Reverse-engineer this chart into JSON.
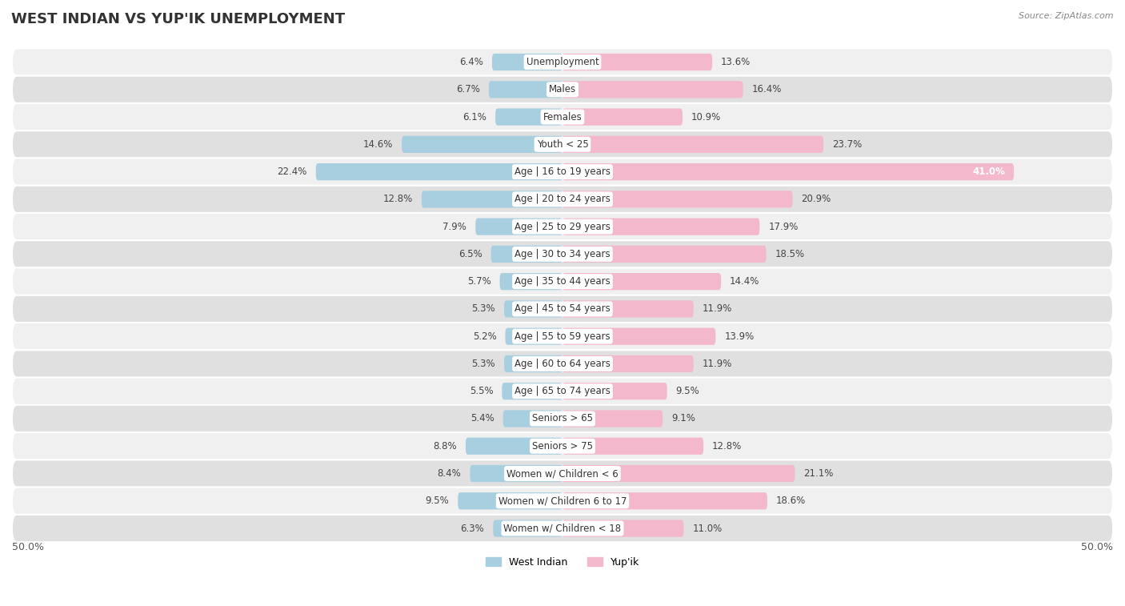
{
  "title": "WEST INDIAN VS YUP'IK UNEMPLOYMENT",
  "source": "Source: ZipAtlas.com",
  "categories": [
    "Unemployment",
    "Males",
    "Females",
    "Youth < 25",
    "Age | 16 to 19 years",
    "Age | 20 to 24 years",
    "Age | 25 to 29 years",
    "Age | 30 to 34 years",
    "Age | 35 to 44 years",
    "Age | 45 to 54 years",
    "Age | 55 to 59 years",
    "Age | 60 to 64 years",
    "Age | 65 to 74 years",
    "Seniors > 65",
    "Seniors > 75",
    "Women w/ Children < 6",
    "Women w/ Children 6 to 17",
    "Women w/ Children < 18"
  ],
  "west_indian": [
    6.4,
    6.7,
    6.1,
    14.6,
    22.4,
    12.8,
    7.9,
    6.5,
    5.7,
    5.3,
    5.2,
    5.3,
    5.5,
    5.4,
    8.8,
    8.4,
    9.5,
    6.3
  ],
  "yupik": [
    13.6,
    16.4,
    10.9,
    23.7,
    41.0,
    20.9,
    17.9,
    18.5,
    14.4,
    11.9,
    13.9,
    11.9,
    9.5,
    9.1,
    12.8,
    21.1,
    18.6,
    11.0
  ],
  "west_indian_color": "#a8cfe0",
  "yupik_color": "#f4b8cc",
  "row_bg_even": "#f0f0f0",
  "row_bg_odd": "#e0e0e0",
  "max_value": 50.0,
  "legend_west_indian": "West Indian",
  "legend_yupik": "Yup'ik",
  "bar_height": 0.62,
  "figsize": [
    14.06,
    7.57
  ],
  "dpi": 100,
  "title_fontsize": 13,
  "label_fontsize": 8.5,
  "value_fontsize": 8.5
}
